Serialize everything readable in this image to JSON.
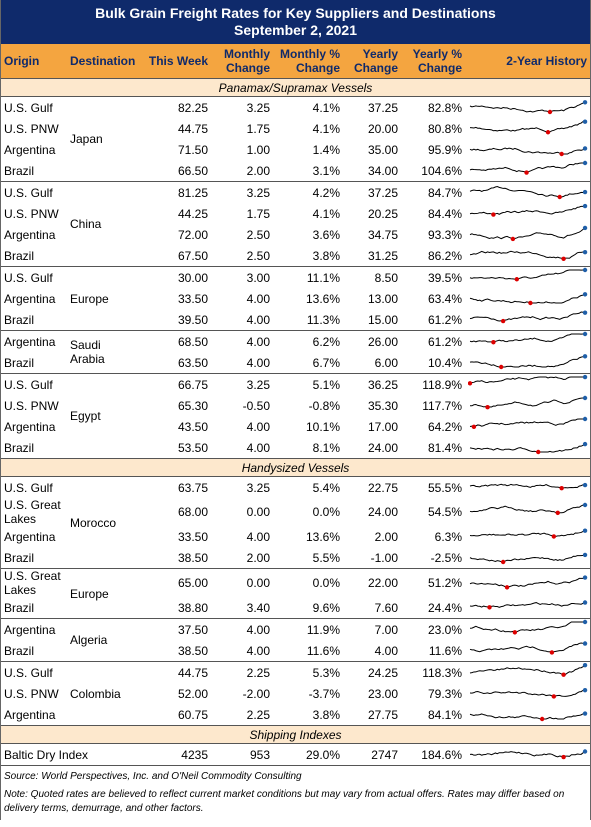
{
  "header": {
    "title": "Bulk Grain Freight Rates for Key Suppliers and Destinations",
    "date": "September 2, 2021"
  },
  "table": {
    "columns": [
      "Origin",
      "Destination",
      "This Week",
      "Monthly Change",
      "Monthly % Change",
      "Yearly Change",
      "Yearly % Change",
      "2-Year History"
    ],
    "sections": [
      {
        "title": "Panamax/Supramax Vessels",
        "groups": [
          {
            "destination": "Japan",
            "rows": [
              [
                "U.S. Gulf",
                "82.25",
                "3.25",
                "4.1%",
                "37.25",
                "82.8%"
              ],
              [
                "U.S. PNW",
                "44.75",
                "1.75",
                "4.1%",
                "20.00",
                "80.8%"
              ],
              [
                "Argentina",
                "71.50",
                "1.00",
                "1.4%",
                "35.00",
                "95.9%"
              ],
              [
                "Brazil",
                "66.50",
                "2.00",
                "3.1%",
                "34.00",
                "104.6%"
              ]
            ]
          },
          {
            "destination": "China",
            "rows": [
              [
                "U.S. Gulf",
                "81.25",
                "3.25",
                "4.2%",
                "37.25",
                "84.7%"
              ],
              [
                "U.S. PNW",
                "44.25",
                "1.75",
                "4.1%",
                "20.25",
                "84.4%"
              ],
              [
                "Argentina",
                "72.00",
                "2.50",
                "3.6%",
                "34.75",
                "93.3%"
              ],
              [
                "Brazil",
                "67.50",
                "2.50",
                "3.8%",
                "31.25",
                "86.2%"
              ]
            ]
          },
          {
            "destination": "Europe",
            "rows": [
              [
                "U.S. Gulf",
                "30.00",
                "3.00",
                "11.1%",
                "8.50",
                "39.5%"
              ],
              [
                "Argentina",
                "33.50",
                "4.00",
                "13.6%",
                "13.00",
                "63.4%"
              ],
              [
                "Brazil",
                "39.50",
                "4.00",
                "11.3%",
                "15.00",
                "61.2%"
              ]
            ]
          },
          {
            "destination": "Saudi Arabia",
            "rows": [
              [
                "Argentina",
                "68.50",
                "4.00",
                "6.2%",
                "26.00",
                "61.2%"
              ],
              [
                "Brazil",
                "63.50",
                "4.00",
                "6.7%",
                "6.00",
                "10.4%"
              ]
            ]
          },
          {
            "destination": "Egypt",
            "rows": [
              [
                "U.S. Gulf",
                "66.75",
                "3.25",
                "5.1%",
                "36.25",
                "118.9%"
              ],
              [
                "U.S. PNW",
                "65.30",
                "-0.50",
                "-0.8%",
                "35.30",
                "117.7%"
              ],
              [
                "Argentina",
                "43.50",
                "4.00",
                "10.1%",
                "17.00",
                "64.2%"
              ],
              [
                "Brazil",
                "53.50",
                "4.00",
                "8.1%",
                "24.00",
                "81.4%"
              ]
            ]
          }
        ]
      },
      {
        "title": "Handysized Vessels",
        "groups": [
          {
            "destination": "Morocco",
            "rows": [
              [
                "U.S. Gulf",
                "63.75",
                "3.25",
                "5.4%",
                "22.75",
                "55.5%"
              ],
              [
                "U.S. Great Lakes",
                "68.00",
                "0.00",
                "0.0%",
                "24.00",
                "54.5%"
              ],
              [
                "Argentina",
                "33.50",
                "4.00",
                "13.6%",
                "2.00",
                "6.3%"
              ],
              [
                "Brazil",
                "38.50",
                "2.00",
                "5.5%",
                "-1.00",
                "-2.5%"
              ]
            ]
          },
          {
            "destination": "Europe",
            "rows": [
              [
                "U.S. Great Lakes",
                "65.00",
                "0.00",
                "0.0%",
                "22.00",
                "51.2%"
              ],
              [
                "Brazil",
                "38.80",
                "3.40",
                "9.6%",
                "7.60",
                "24.4%"
              ]
            ]
          },
          {
            "destination": "Algeria",
            "rows": [
              [
                "Argentina",
                "37.50",
                "4.00",
                "11.9%",
                "7.00",
                "23.0%"
              ],
              [
                "Brazil",
                "38.50",
                "4.00",
                "11.6%",
                "4.00",
                "11.6%"
              ]
            ]
          },
          {
            "destination": "Colombia",
            "rows": [
              [
                "U.S. Gulf",
                "44.75",
                "2.25",
                "5.3%",
                "24.25",
                "118.3%"
              ],
              [
                "U.S. PNW",
                "52.00",
                "-2.00",
                "-3.7%",
                "23.00",
                "79.3%"
              ],
              [
                "Argentina",
                "60.75",
                "2.25",
                "3.8%",
                "27.75",
                "84.1%"
              ]
            ]
          }
        ]
      },
      {
        "title": "Shipping Indexes",
        "groups": [
          {
            "rows": [
              [
                "Baltic Dry Index",
                "4235",
                "953",
                "29.0%",
                "2747",
                "184.6%"
              ]
            ]
          }
        ]
      }
    ]
  },
  "footer": {
    "source": "Source: World Perspectives, Inc. and O'Neil Commodity Consulting",
    "note": "Note: Quoted rates are believed to reflect current market conditions but may vary from actual offers. Rates may differ based on delivery terms, demurrage, and other factors."
  }
}
